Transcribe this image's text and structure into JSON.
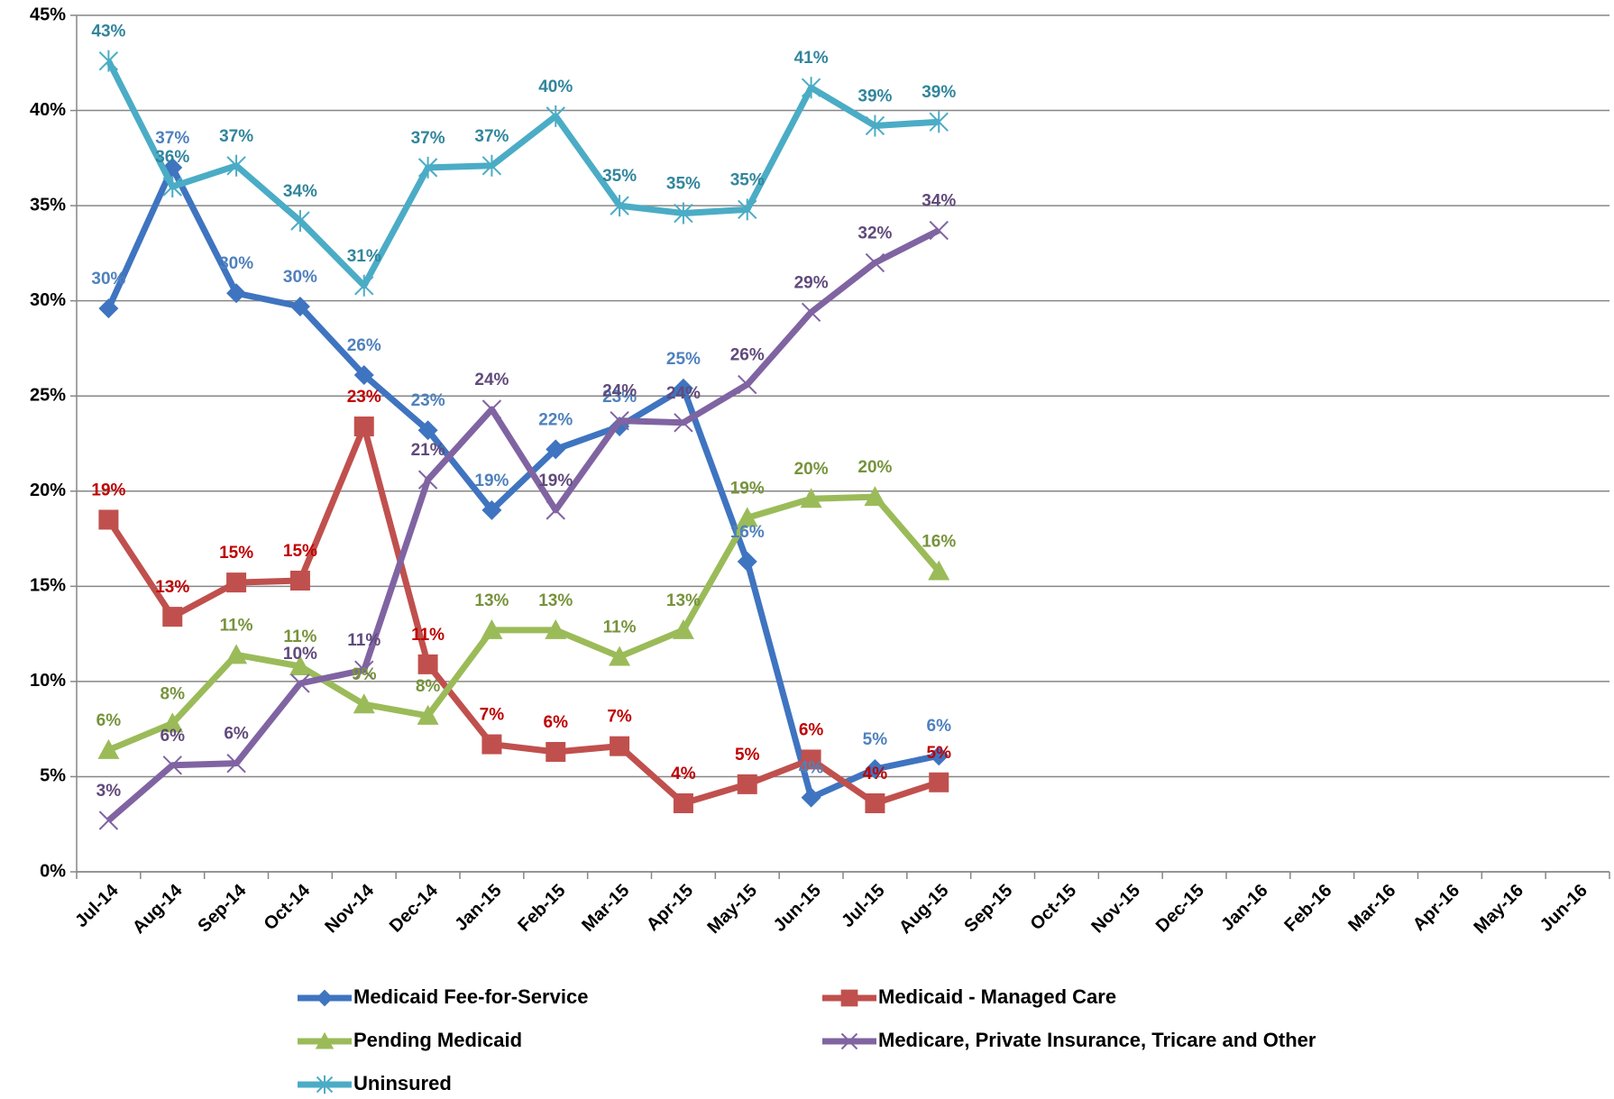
{
  "chart_data": {
    "type": "line",
    "categories": [
      "Jul-14",
      "Aug-14",
      "Sep-14",
      "Oct-14",
      "Nov-14",
      "Dec-14",
      "Jan-15",
      "Feb-15",
      "Mar-15",
      "Apr-15",
      "May-15",
      "Jun-15",
      "Jul-15",
      "Aug-15",
      "Sep-15",
      "Oct-15",
      "Nov-15",
      "Dec-15",
      "Jan-16",
      "Feb-16",
      "Mar-16",
      "Apr-16",
      "May-16",
      "Jun-16"
    ],
    "ylim": [
      0,
      45
    ],
    "yticks": [
      {
        "value": 0,
        "label": "0%"
      },
      {
        "value": 5,
        "label": "5%"
      },
      {
        "value": 10,
        "label": "10%"
      },
      {
        "value": 15,
        "label": "15%"
      },
      {
        "value": 20,
        "label": "20%"
      },
      {
        "value": 25,
        "label": "25%"
      },
      {
        "value": 30,
        "label": "30%"
      },
      {
        "value": 35,
        "label": "35%"
      },
      {
        "value": 40,
        "label": "40%"
      },
      {
        "value": 45,
        "label": "45%"
      }
    ],
    "grid": true,
    "legend": "bottom",
    "series": [
      {
        "name": "Medicaid Fee-for-Service",
        "color": "#3f74c0",
        "label_color": "#4f81bd",
        "marker": "diamond",
        "values": [
          29.6,
          37.0,
          30.4,
          29.7,
          26.1,
          23.2,
          19.0,
          22.2,
          23.4,
          25.4,
          16.3,
          3.9,
          5.4,
          6.1,
          null,
          null,
          null,
          null,
          null,
          null,
          null,
          null,
          null,
          null
        ],
        "value_labels": [
          "30%",
          "37%",
          "30%",
          "30%",
          "26%",
          "23%",
          "19%",
          "22%",
          "23%",
          "25%",
          "16%",
          "4%",
          "5%",
          "6%",
          null,
          null,
          null,
          null,
          null,
          null,
          null,
          null,
          null,
          null
        ]
      },
      {
        "name": "Medicaid - Managed Care",
        "color": "#c0504d",
        "label_color": "#c00000",
        "marker": "square",
        "values": [
          18.5,
          13.4,
          15.2,
          15.3,
          23.4,
          10.9,
          6.7,
          6.3,
          6.6,
          3.6,
          4.6,
          5.9,
          3.6,
          4.7,
          null,
          null,
          null,
          null,
          null,
          null,
          null,
          null,
          null,
          null
        ],
        "value_labels": [
          "19%",
          "13%",
          "15%",
          "15%",
          "23%",
          "11%",
          "7%",
          "6%",
          "7%",
          "4%",
          "5%",
          "6%",
          "4%",
          "5%",
          null,
          null,
          null,
          null,
          null,
          null,
          null,
          null,
          null,
          null
        ]
      },
      {
        "name": "Pending Medicaid",
        "color": "#9bbb59",
        "label_color": "#77933c",
        "marker": "triangle",
        "values": [
          6.4,
          7.8,
          11.4,
          10.8,
          8.8,
          8.2,
          12.7,
          12.7,
          11.3,
          12.7,
          18.6,
          19.6,
          19.7,
          15.8,
          null,
          null,
          null,
          null,
          null,
          null,
          null,
          null,
          null,
          null
        ],
        "value_labels": [
          "6%",
          "8%",
          "11%",
          "11%",
          "9%",
          "8%",
          "13%",
          "13%",
          "11%",
          "13%",
          "19%",
          "20%",
          "20%",
          "16%",
          null,
          null,
          null,
          null,
          null,
          null,
          null,
          null,
          null,
          null
        ]
      },
      {
        "name": "Medicare, Private Insurance, Tricare and Other",
        "color": "#8064a2",
        "label_color": "#604a7b",
        "marker": "x",
        "values": [
          2.7,
          5.6,
          5.7,
          9.9,
          10.6,
          20.6,
          24.3,
          19.0,
          23.7,
          23.6,
          25.6,
          29.4,
          32.0,
          33.7,
          null,
          null,
          null,
          null,
          null,
          null,
          null,
          null,
          null,
          null
        ],
        "value_labels": [
          "3%",
          "6%",
          "6%",
          "10%",
          "11%",
          "21%",
          "24%",
          "19%",
          "24%",
          "24%",
          "26%",
          "29%",
          "32%",
          "34%",
          null,
          null,
          null,
          null,
          null,
          null,
          null,
          null,
          null,
          null
        ]
      },
      {
        "name": "Uninsured",
        "color": "#4bacc6",
        "label_color": "#31859c",
        "marker": "star",
        "values": [
          42.6,
          36.0,
          37.1,
          34.2,
          30.8,
          37.0,
          37.1,
          39.7,
          35.0,
          34.6,
          34.8,
          41.2,
          39.2,
          39.4,
          null,
          null,
          null,
          null,
          null,
          null,
          null,
          null,
          null,
          null
        ],
        "value_labels": [
          "43%",
          "36%",
          "37%",
          "34%",
          "31%",
          "37%",
          "37%",
          "40%",
          "35%",
          "35%",
          "35%",
          "41%",
          "39%",
          "39%",
          null,
          null,
          null,
          null,
          null,
          null,
          null,
          null,
          null,
          null
        ]
      }
    ]
  }
}
